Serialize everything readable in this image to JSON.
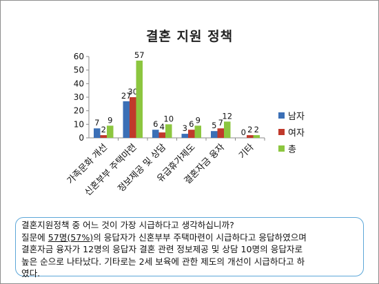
{
  "chart_data": {
    "type": "bar",
    "title": "결혼 지원 정책",
    "categories": [
      "가족문화 개선",
      "신혼부부 주택마련",
      "정보제공 및 상담",
      "유급휴가제도",
      "결혼자금 융자",
      "기타"
    ],
    "series": [
      {
        "name": "남자",
        "color": "#3b6fb6",
        "values": [
          7,
          27,
          6,
          3,
          5,
          0
        ]
      },
      {
        "name": "여자",
        "color": "#c0392b",
        "values": [
          2,
          30,
          4,
          6,
          7,
          2
        ]
      },
      {
        "name": "총",
        "color": "#8cc63f",
        "values": [
          9,
          57,
          10,
          9,
          12,
          2
        ]
      }
    ],
    "ylim": [
      0,
      60
    ],
    "yticks": [
      0,
      10,
      20,
      30,
      40,
      50,
      60
    ],
    "grid": false,
    "legend_position": "right"
  },
  "note": {
    "line1": "결혼지원정책 중 어느 것이 가장 시급하다고 생각하십니까?",
    "line2_pre": "질문에 ",
    "line2_u": "57명(57%)",
    "line2_post": "의 응답자가 신혼부부 주택마련이 시급하다고 응답하였으며",
    "line3": "결혼자금 융자가 12명의 응답자 결혼 관련 정보제공 및 상담 10명의 응답자로",
    "line4": "높은 순으로 나타났다. 기타로는 2세 보육에 관한 제도의 개선이 시급하다고 하",
    "line5": "였다."
  }
}
